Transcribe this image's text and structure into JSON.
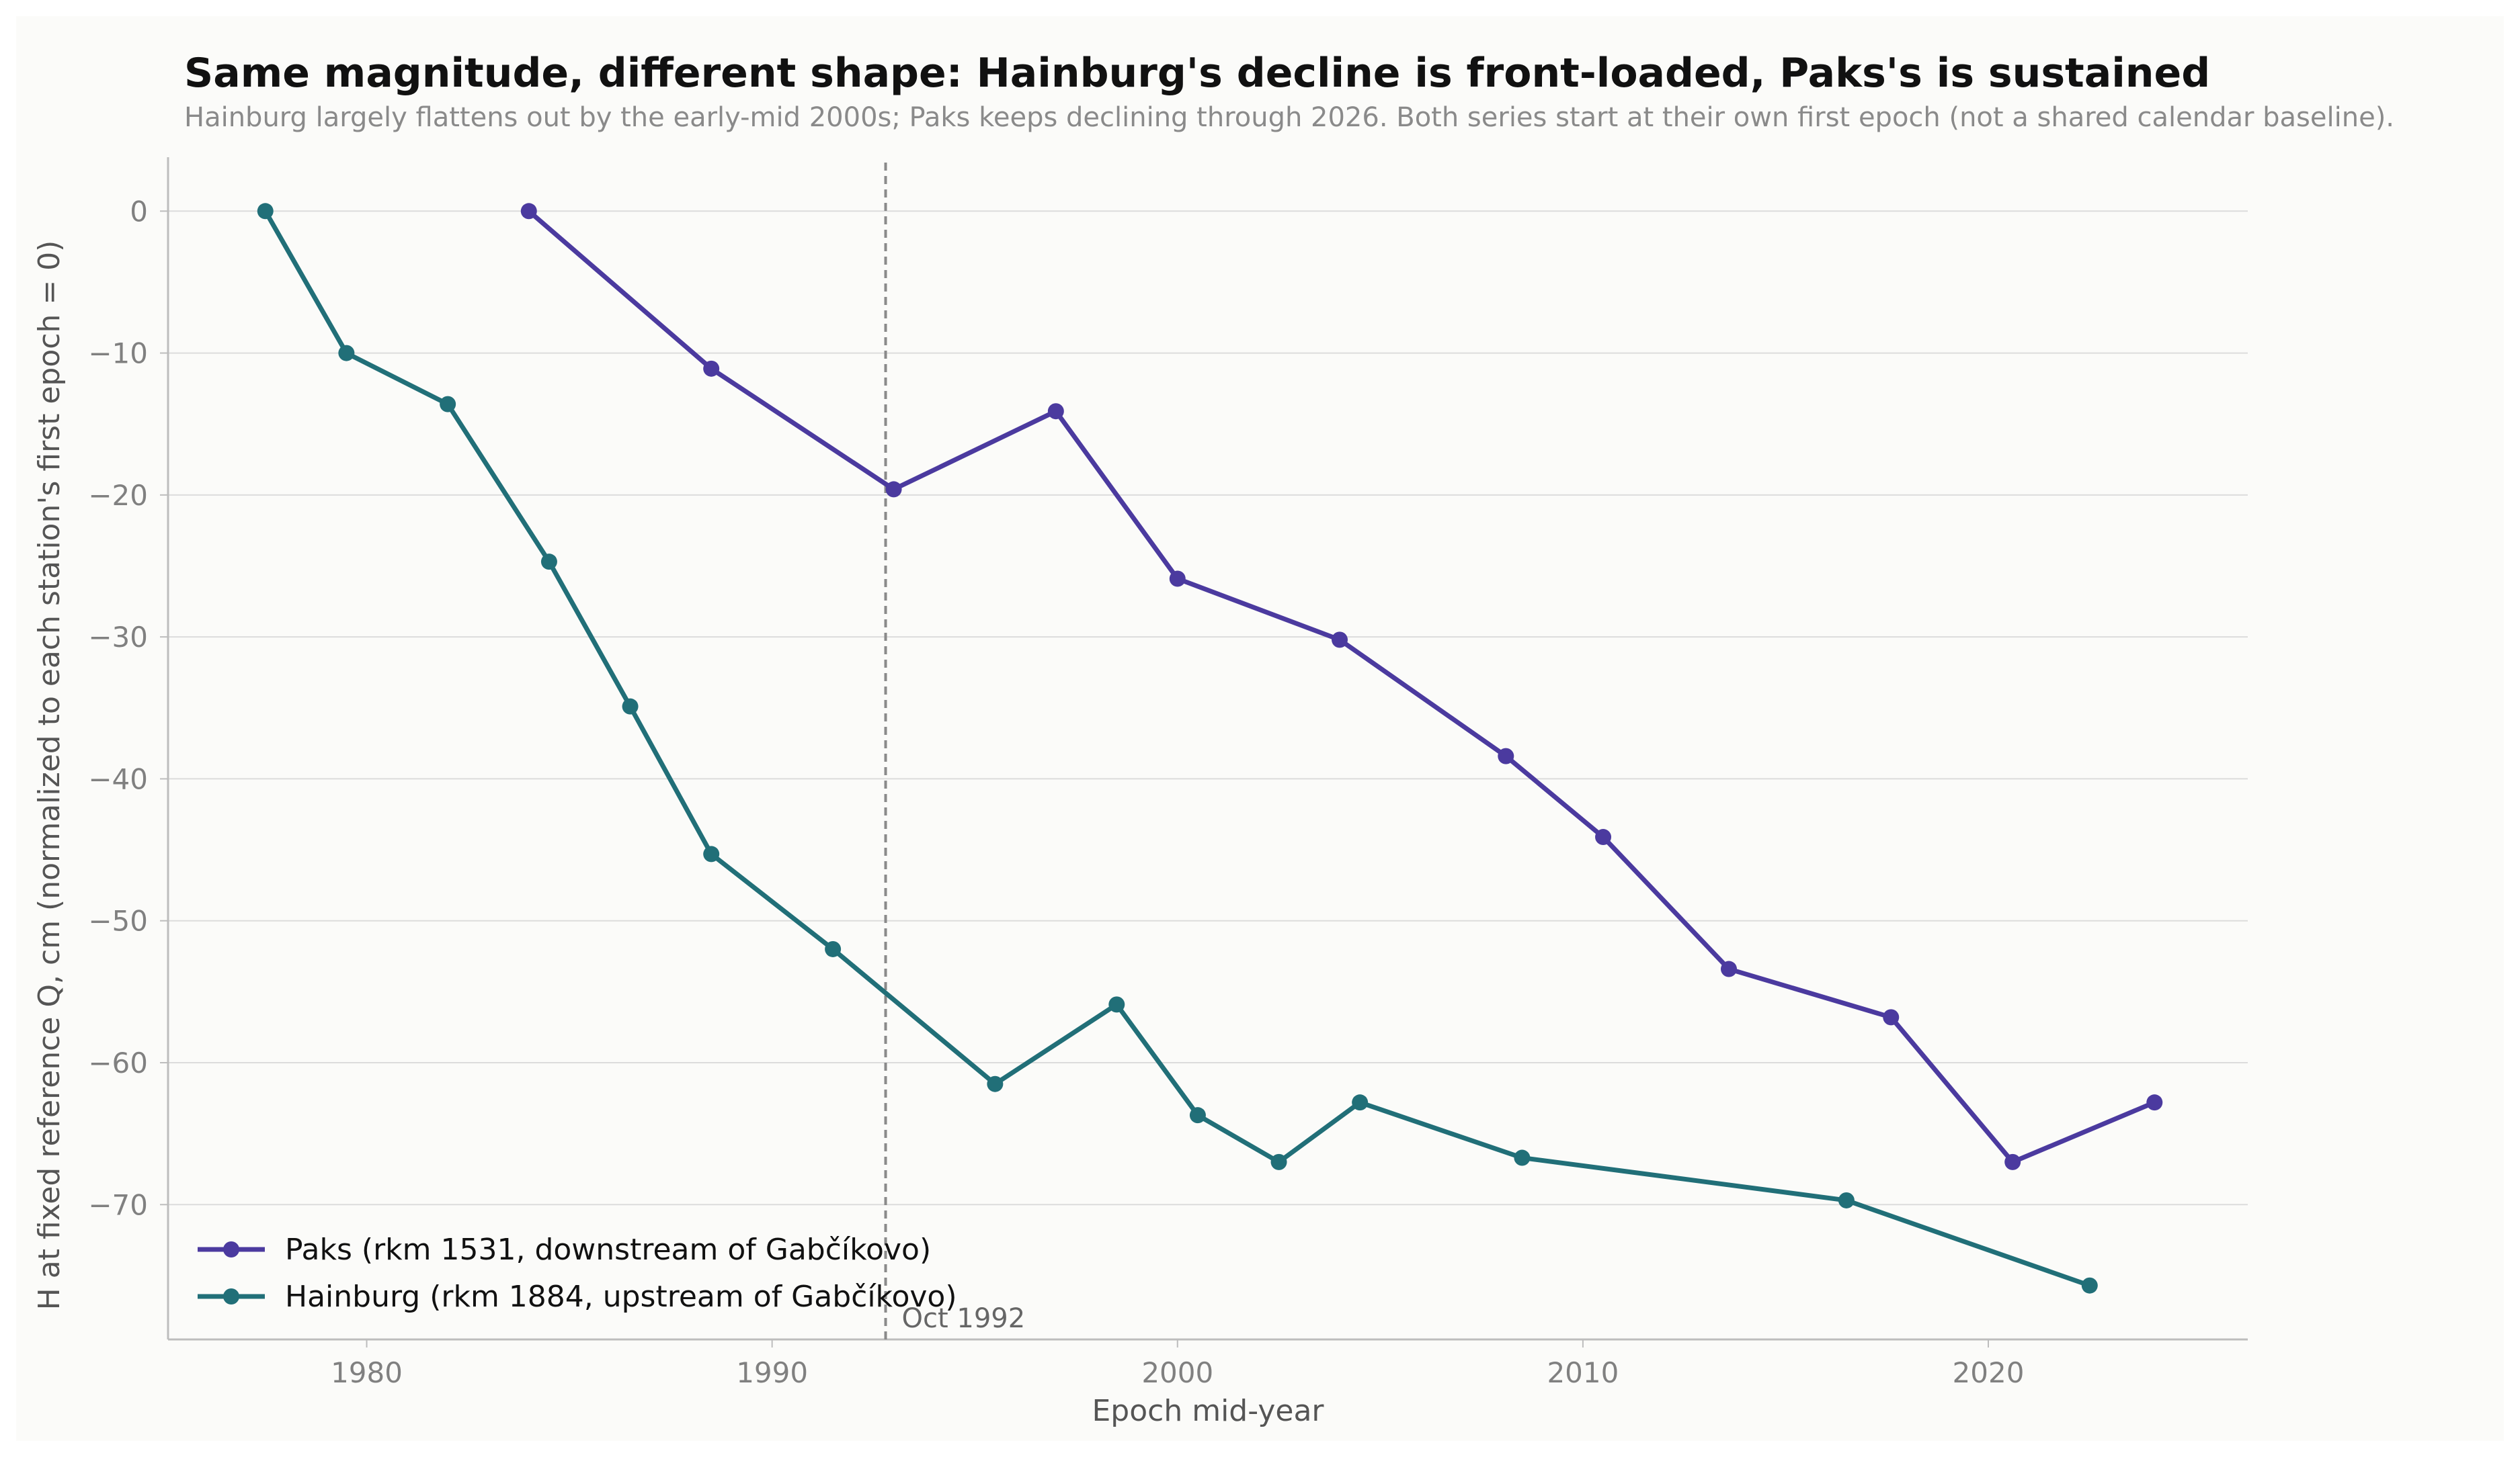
{
  "chart_data": {
    "type": "line",
    "title": "Same magnitude, different shape: Hainburg's decline is front-loaded, Paks's is sustained",
    "subtitle": "Hainburg largely flattens out by the early-mid 2000s; Paks keeps declining through 2026. Both series start at their own first epoch (not a shared calendar baseline).",
    "xlabel": "Epoch mid-year",
    "ylabel": "H at fixed reference Q, cm (normalized to each station's first epoch = 0)",
    "xlim": [
      1975.1,
      2026.4
    ],
    "ylim": [
      -79.5,
      3.8
    ],
    "x_ticks": [
      1980,
      1990,
      2000,
      2010,
      2020
    ],
    "y_ticks": [
      0,
      -10,
      -20,
      -30,
      -40,
      -50,
      -60,
      -70
    ],
    "grid": "horizontal",
    "legend_position": "bottom-left",
    "series": [
      {
        "name": "Paks (rkm 1531, downstream of Gabčíkovo)",
        "color": "#4b3a9f",
        "x": [
          1984.0,
          1988.5,
          1993.0,
          1997.0,
          2000.0,
          2004.0,
          2008.1,
          2010.5,
          2013.6,
          2017.6,
          2020.6,
          2024.1
        ],
        "y": [
          0,
          -11.1,
          -19.6,
          -14.1,
          -25.9,
          -30.2,
          -38.4,
          -44.1,
          -53.4,
          -56.8,
          -67.0,
          -62.8
        ]
      },
      {
        "name": "Hainburg (rkm 1884, upstream of Gabčíkovo)",
        "color": "#216f78",
        "x": [
          1977.5,
          1979.5,
          1982.0,
          1984.5,
          1986.5,
          1988.5,
          1991.5,
          1995.5,
          1998.5,
          2000.5,
          2002.5,
          2004.5,
          2008.5,
          2016.5,
          2022.5
        ],
        "y": [
          0,
          -10.0,
          -13.6,
          -24.7,
          -34.9,
          -45.3,
          -52.0,
          -61.5,
          -55.9,
          -63.7,
          -67.0,
          -62.8,
          -66.7,
          -69.7,
          -75.7
        ]
      }
    ],
    "annotations": [
      {
        "type": "vline",
        "x": 1992.8,
        "label": "Oct 1992",
        "color": "#8a8a8a"
      }
    ]
  }
}
